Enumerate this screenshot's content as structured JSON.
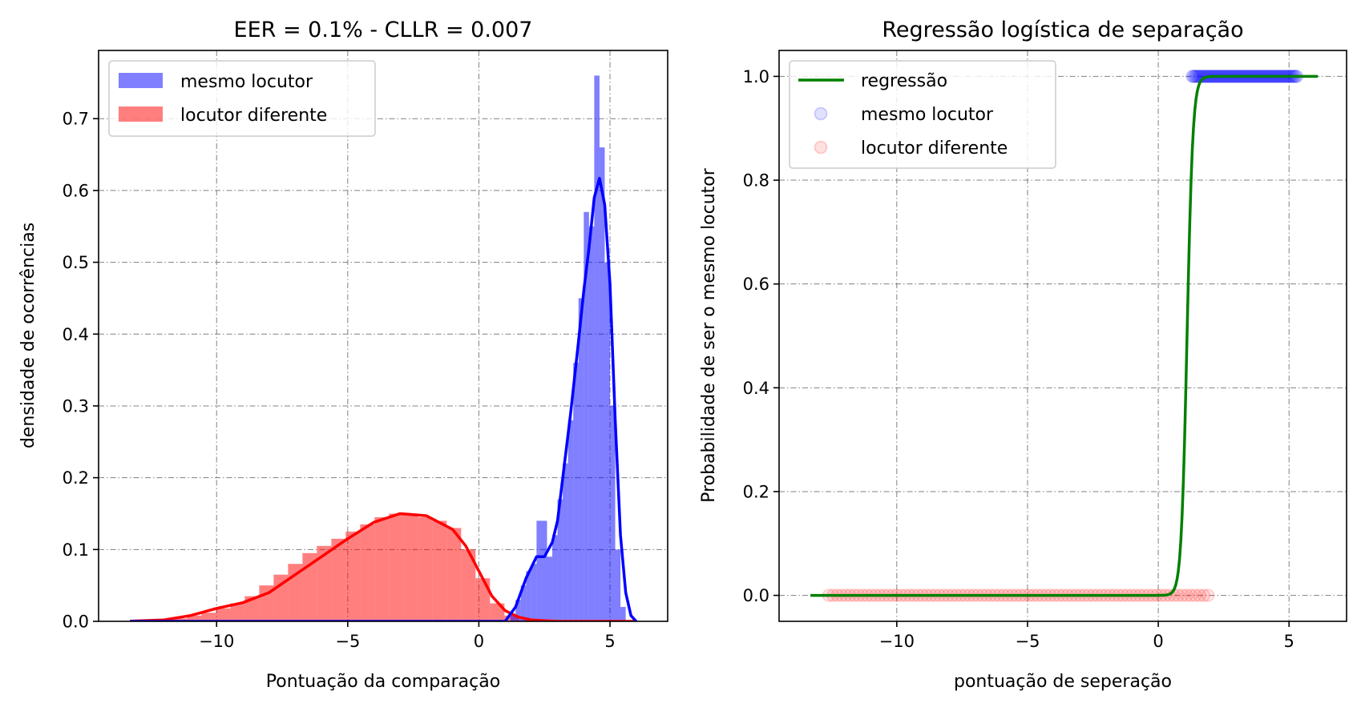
{
  "chart_data": [
    {
      "type": "bar",
      "title": "EER =  0.1% - CLLR = 0.007",
      "xlabel": "Pontuação da comparação",
      "ylabel": "densidade de ocorrências",
      "xlim": [
        -14.5,
        7.2
      ],
      "ylim": [
        0,
        0.795
      ],
      "xticks": [
        -10,
        -5,
        0,
        5
      ],
      "xtick_labels": [
        "−10",
        "−5",
        "0",
        "5"
      ],
      "yticks": [
        0,
        0.1,
        0.2,
        0.3,
        0.4,
        0.5,
        0.6,
        0.7
      ],
      "ytick_labels": [
        "0.0",
        "0.1",
        "0.2",
        "0.3",
        "0.4",
        "0.5",
        "0.6",
        "0.7"
      ],
      "grid": true,
      "legend_position": "top-left",
      "series": [
        {
          "name": "mesmo locutor",
          "kind": "histogram",
          "color": "#0000ff",
          "opacity": 0.5,
          "bin_width": 0.2,
          "bins": [
            [
              1.3,
              0.01
            ],
            [
              1.5,
              0.03
            ],
            [
              1.7,
              0.05
            ],
            [
              1.9,
              0.07
            ],
            [
              2.1,
              0.08
            ],
            [
              2.3,
              0.14
            ],
            [
              2.5,
              0.14
            ],
            [
              2.7,
              0.09
            ],
            [
              2.9,
              0.12
            ],
            [
              3.1,
              0.17
            ],
            [
              3.3,
              0.22
            ],
            [
              3.5,
              0.28
            ],
            [
              3.7,
              0.36
            ],
            [
              3.9,
              0.45
            ],
            [
              4.1,
              0.57
            ],
            [
              4.3,
              0.55
            ],
            [
              4.5,
              0.76
            ],
            [
              4.7,
              0.66
            ],
            [
              4.9,
              0.5
            ],
            [
              5.1,
              0.3
            ],
            [
              5.3,
              0.1
            ],
            [
              5.5,
              0.02
            ]
          ],
          "kde": [
            [
              -13.3,
              0
            ],
            [
              1.0,
              0
            ],
            [
              1.4,
              0.02
            ],
            [
              1.8,
              0.06
            ],
            [
              2.2,
              0.09
            ],
            [
              2.5,
              0.09
            ],
            [
              2.8,
              0.11
            ],
            [
              3.0,
              0.14
            ],
            [
              3.2,
              0.2
            ],
            [
              3.5,
              0.29
            ],
            [
              3.8,
              0.39
            ],
            [
              4.0,
              0.46
            ],
            [
              4.2,
              0.52
            ],
            [
              4.4,
              0.59
            ],
            [
              4.6,
              0.617
            ],
            [
              4.8,
              0.58
            ],
            [
              5.0,
              0.47
            ],
            [
              5.2,
              0.28
            ],
            [
              5.4,
              0.12
            ],
            [
              5.6,
              0.04
            ],
            [
              5.8,
              0.008
            ],
            [
              6.0,
              0
            ]
          ]
        },
        {
          "name": "locutor diferente",
          "kind": "histogram",
          "color": "#ff0000",
          "opacity": 0.5,
          "bin_width": 0.55,
          "bins": [
            [
              -12.5,
              0.001
            ],
            [
              -11.95,
              0.002
            ],
            [
              -11.4,
              0.004
            ],
            [
              -10.85,
              0.008
            ],
            [
              -10.3,
              0.012
            ],
            [
              -9.75,
              0.018
            ],
            [
              -9.2,
              0.025
            ],
            [
              -8.65,
              0.035
            ],
            [
              -8.1,
              0.05
            ],
            [
              -7.55,
              0.065
            ],
            [
              -7.0,
              0.08
            ],
            [
              -6.45,
              0.095
            ],
            [
              -5.9,
              0.105
            ],
            [
              -5.35,
              0.115
            ],
            [
              -4.8,
              0.125
            ],
            [
              -4.25,
              0.135
            ],
            [
              -3.7,
              0.145
            ],
            [
              -3.15,
              0.15
            ],
            [
              -2.6,
              0.15
            ],
            [
              -2.05,
              0.145
            ],
            [
              -1.5,
              0.14
            ],
            [
              -0.95,
              0.13
            ],
            [
              -0.4,
              0.1
            ],
            [
              0.15,
              0.06
            ],
            [
              0.7,
              0.025
            ],
            [
              1.25,
              0.008
            ],
            [
              1.8,
              0.002
            ]
          ],
          "kde": [
            [
              -13.3,
              0.0003
            ],
            [
              -12.0,
              0.002
            ],
            [
              -11.0,
              0.008
            ],
            [
              -10.0,
              0.018
            ],
            [
              -9.0,
              0.026
            ],
            [
              -8.0,
              0.04
            ],
            [
              -7.0,
              0.065
            ],
            [
              -6.0,
              0.09
            ],
            [
              -5.0,
              0.115
            ],
            [
              -4.0,
              0.138
            ],
            [
              -3.0,
              0.15
            ],
            [
              -2.0,
              0.147
            ],
            [
              -1.0,
              0.128
            ],
            [
              -0.5,
              0.105
            ],
            [
              0.0,
              0.07
            ],
            [
              0.5,
              0.035
            ],
            [
              1.0,
              0.015
            ],
            [
              1.5,
              0.006
            ],
            [
              2.0,
              0.002
            ],
            [
              3.0,
              0
            ],
            [
              6.0,
              0
            ]
          ]
        }
      ]
    },
    {
      "type": "scatter",
      "title": "Regressão logística de separação",
      "xlabel": "pontuação de seperação",
      "ylabel": "Probabilidade de ser o mesmo locutor",
      "xlim": [
        -14.5,
        7.2
      ],
      "ylim": [
        -0.05,
        1.05
      ],
      "xticks": [
        -10,
        -5,
        0,
        5
      ],
      "xtick_labels": [
        "−10",
        "−5",
        "0",
        "5"
      ],
      "yticks": [
        0,
        0.2,
        0.4,
        0.6,
        0.8,
        1.0
      ],
      "ytick_labels": [
        "0.0",
        "0.2",
        "0.4",
        "0.6",
        "0.8",
        "1.0"
      ],
      "grid": true,
      "legend_position": "top-left",
      "regression": {
        "name": "regressão",
        "color": "#008000",
        "x_range": [
          -13.3,
          6.1
        ],
        "midpoint": 1.1,
        "slope": 9
      },
      "series": [
        {
          "name": "mesmo locutor",
          "color": "#0000ff",
          "y": 1,
          "x_range": [
            1.3,
            5.3
          ]
        },
        {
          "name": "locutor diferente",
          "color": "#ff0000",
          "y": 0,
          "x_range": [
            -12.6,
            1.9
          ]
        }
      ]
    }
  ]
}
